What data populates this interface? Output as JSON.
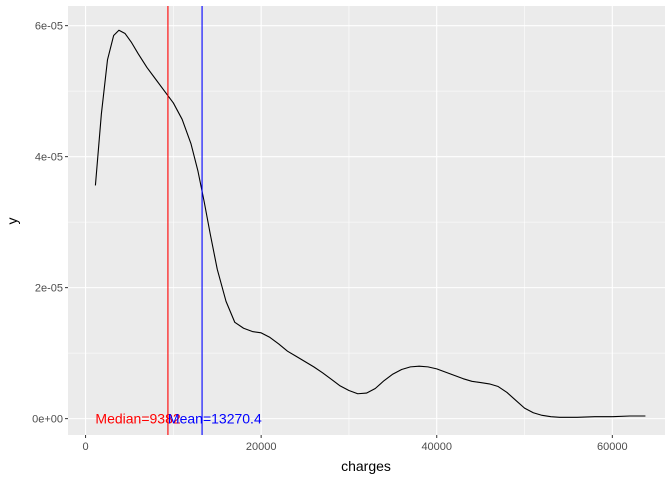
{
  "chart_data": {
    "type": "line",
    "title": "",
    "xlabel": "charges",
    "ylabel": "y",
    "xlim": [
      -2000,
      66000
    ],
    "ylim": [
      -2.5e-06,
      6.3e-05
    ],
    "x_ticks": [
      0,
      20000,
      40000,
      60000
    ],
    "x_tick_labels": [
      "0",
      "20000",
      "40000",
      "60000"
    ],
    "y_ticks": [
      0,
      2e-05,
      4e-05,
      6e-05
    ],
    "y_tick_labels": [
      "0e+00",
      "2e-05",
      "4e-05",
      "6e-05"
    ],
    "grid": true,
    "series": [
      {
        "color": "#000000",
        "x": [
          1122,
          1800,
          2500,
          3200,
          3800,
          4500,
          5200,
          6000,
          7000,
          8000,
          9000,
          10000,
          11000,
          12000,
          12800,
          13500,
          14200,
          15000,
          16000,
          17000,
          18000,
          19000,
          20000,
          21000,
          22000,
          23000,
          24000,
          25000,
          26000,
          27000,
          28000,
          29000,
          30000,
          31000,
          32000,
          33000,
          34000,
          35000,
          36000,
          37000,
          38000,
          39000,
          40000,
          41000,
          42000,
          43000,
          44000,
          45000,
          46000,
          47000,
          48000,
          49000,
          50000,
          51000,
          52000,
          53000,
          54000,
          55000,
          56000,
          58000,
          60000,
          62000,
          63770
        ],
        "y": [
          3.56e-05,
          4.65e-05,
          5.48e-05,
          5.85e-05,
          5.93e-05,
          5.88e-05,
          5.75e-05,
          5.57e-05,
          5.36e-05,
          5.18e-05,
          5e-05,
          4.82e-05,
          4.57e-05,
          4.2e-05,
          3.78e-05,
          3.32e-05,
          2.82e-05,
          2.28e-05,
          1.79e-05,
          1.47e-05,
          1.38e-05,
          1.33e-05,
          1.31e-05,
          1.24e-05,
          1.14e-05,
          1.03e-05,
          9.5e-06,
          8.7e-06,
          7.9e-06,
          7e-06,
          6e-06,
          5e-06,
          4.3e-06,
          3.8e-06,
          3.9e-06,
          4.6e-06,
          5.8e-06,
          6.8e-06,
          7.5e-06,
          7.9e-06,
          8e-06,
          7.9e-06,
          7.6e-06,
          7.1e-06,
          6.6e-06,
          6.1e-06,
          5.7e-06,
          5.5e-06,
          5.3e-06,
          4.9e-06,
          4e-06,
          2.8e-06,
          1.6e-06,
          9e-07,
          5e-07,
          3e-07,
          2e-07,
          2e-07,
          2e-07,
          3e-07,
          3e-07,
          4e-07,
          4e-07
        ]
      }
    ],
    "vlines": [
      {
        "x": 9382,
        "color": "#ff0000"
      },
      {
        "x": 13270.4,
        "color": "#0000ff"
      }
    ],
    "annotations": [
      {
        "text": "Median=9382",
        "x": 1122,
        "y": 0,
        "color": "#ff0000"
      },
      {
        "text": "Mean=13270.4",
        "x": 9382,
        "y": 0,
        "color": "#0000ff"
      }
    ]
  }
}
